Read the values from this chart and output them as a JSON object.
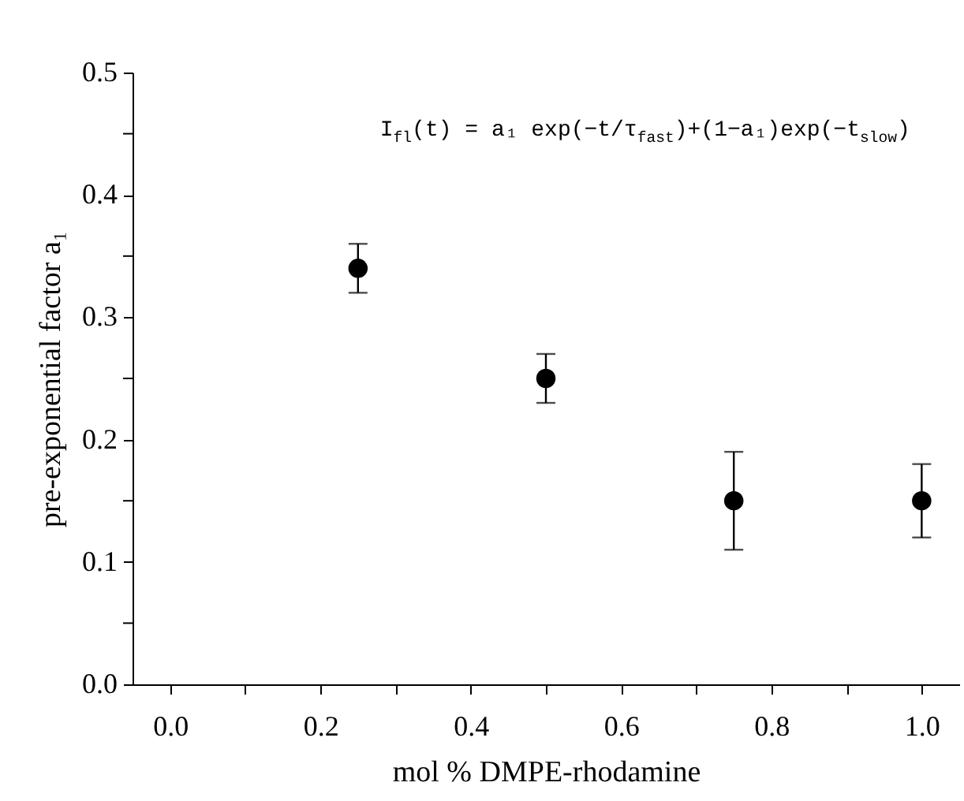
{
  "chart_data": {
    "type": "scatter",
    "xlabel": "mol % DMPE-rhodamine",
    "ylabel": "pre-exponential factor a₁",
    "annotations": [
      "I$_{fl}$(t) = a₁ exp(−t/τ$_{fast}$)+(1−a₁)exp(−t$_{slow}$)"
    ],
    "x": [
      0.25,
      0.5,
      0.75,
      1.0
    ],
    "series": [
      {
        "color": "#000000",
        "values": [
          0.34,
          0.25,
          0.15,
          0.15
        ],
        "errors": [
          0.02,
          0.02,
          0.04,
          0.03
        ]
      }
    ],
    "marker": "circle",
    "xlim": [
      -0.05,
      1.05
    ],
    "xticks": [
      {
        "value": 0,
        "label": "0.0"
      },
      {
        "value": 0.1,
        "label": null
      },
      0.2,
      {
        "value": 0.3,
        "label": null
      },
      0.4,
      {
        "value": 0.5,
        "label": null
      },
      0.6,
      {
        "value": 0.7,
        "label": null
      },
      0.8,
      {
        "value": 0.9,
        "label": null
      },
      {
        "value": 1,
        "label": "1.0"
      }
    ],
    "ylim": [
      0,
      0.5
    ],
    "yticks": [
      {
        "value": 0,
        "label": "0.0"
      },
      {
        "value": 0.05,
        "label": null
      },
      0.1,
      {
        "value": 0.15,
        "label": null
      },
      0.2,
      {
        "value": 0.25,
        "label": null
      },
      0.3,
      {
        "value": 0.35,
        "label": null
      },
      0.4,
      {
        "value": 0.45,
        "label": null
      },
      0.5
    ],
    "grid": false
  }
}
